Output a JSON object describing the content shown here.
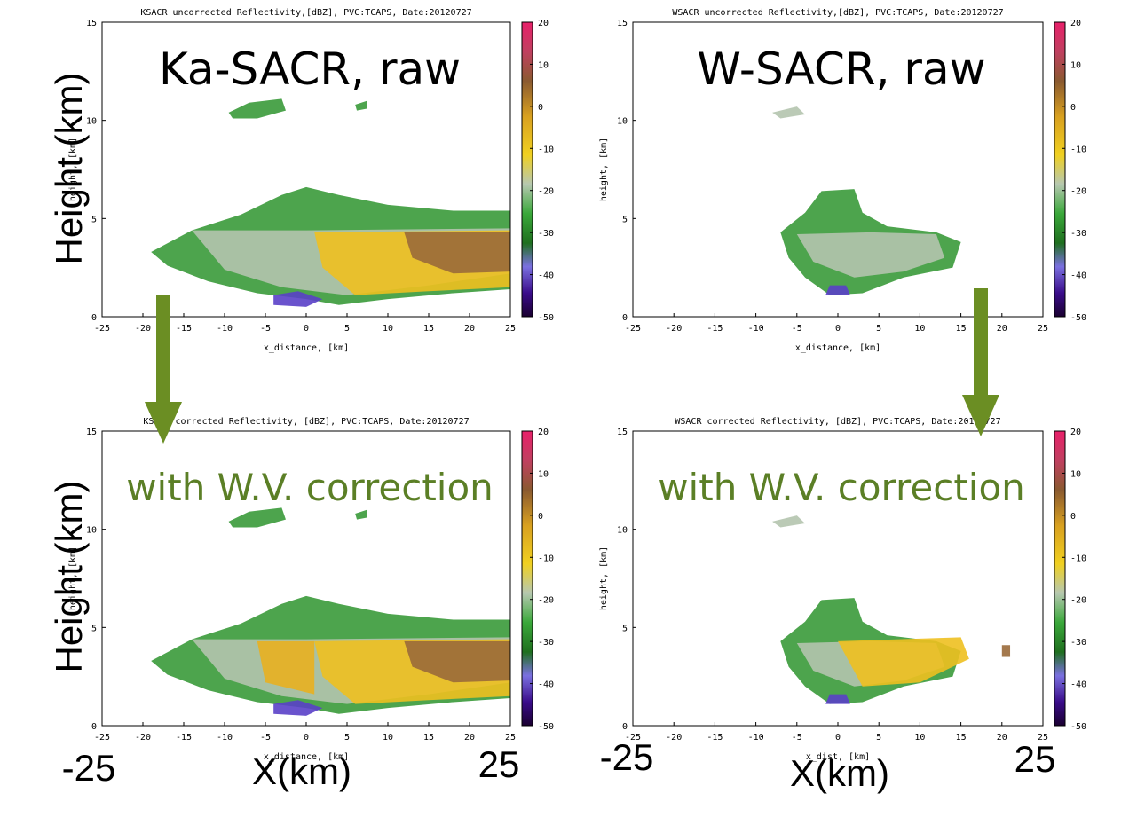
{
  "panels": [
    {
      "title": "KSACR uncorrected Reflectivity,[dBZ], PVC:TCAPS, Date:20120727",
      "label": "Ka-SACR, raw",
      "label_color": "#000000",
      "xlabel": "x_distance, [km]",
      "ylabel": "height, [km]",
      "xlim": [
        -25,
        25
      ],
      "ylim": [
        0,
        15
      ],
      "xticks": [
        -25,
        -20,
        -15,
        -10,
        -5,
        0,
        5,
        10,
        15,
        20,
        25
      ],
      "yticks": [
        0,
        5,
        10,
        15
      ],
      "colorbar_lim": [
        -50,
        20
      ],
      "colorbar_ticks": [
        20,
        10,
        0,
        -10,
        -20,
        -30,
        -40,
        -50
      ]
    },
    {
      "title": "WSACR uncorrected Reflectivity,[dBZ], PVC:TCAPS, Date:20120727",
      "label": "W-SACR, raw",
      "label_color": "#000000",
      "xlabel": "x_distance, [km]",
      "ylabel": "height, [km]",
      "xlim": [
        -25,
        25
      ],
      "ylim": [
        0,
        15
      ],
      "xticks": [
        -25,
        -20,
        -15,
        -10,
        -5,
        0,
        5,
        10,
        15,
        20,
        25
      ],
      "yticks": [
        0,
        5,
        10,
        15
      ],
      "colorbar_lim": [
        -50,
        20
      ],
      "colorbar_ticks": [
        20,
        10,
        0,
        -10,
        -20,
        -30,
        -40,
        -50
      ]
    },
    {
      "title": "KSACR corrected Reflectivity, [dBZ], PVC:TCAPS, Date:20120727",
      "label": "with W.V. correction",
      "label_color": "#5b7f26",
      "xlabel": "x_distance, [km]",
      "ylabel": "height, [km]",
      "xlim": [
        -25,
        25
      ],
      "ylim": [
        0,
        15
      ],
      "xticks": [
        -25,
        -20,
        -15,
        -10,
        -5,
        0,
        5,
        10,
        15,
        20,
        25
      ],
      "yticks": [
        0,
        5,
        10,
        15
      ],
      "colorbar_lim": [
        -50,
        20
      ],
      "colorbar_ticks": [
        20,
        10,
        0,
        -10,
        -20,
        -30,
        -40,
        -50
      ]
    },
    {
      "title": "WSACR corrected Reflectivity, [dBZ], PVC:TCAPS, Date:20120727",
      "label": "with W.V. correction",
      "label_color": "#5b7f26",
      "xlabel": "x_dist, [km]",
      "ylabel": "height, [km]",
      "xlim": [
        -25,
        25
      ],
      "ylim": [
        0,
        15
      ],
      "xticks": [
        -25,
        -20,
        -15,
        -10,
        -5,
        0,
        5,
        10,
        15,
        20,
        25
      ],
      "yticks": [
        0,
        5,
        10,
        15
      ],
      "colorbar_lim": [
        -50,
        20
      ],
      "colorbar_ticks": [
        20,
        10,
        0,
        -10,
        -20,
        -30,
        -40,
        -50
      ]
    }
  ],
  "annotations": {
    "y_axis_top": "Height (km)",
    "y_axis_bottom": "Height (km)",
    "x_axis_left": "X(km)",
    "x_axis_right": "X(km)",
    "x_min_left": "-25",
    "x_max_left": "25",
    "x_min_right": "-25",
    "x_max_right": "25"
  }
}
